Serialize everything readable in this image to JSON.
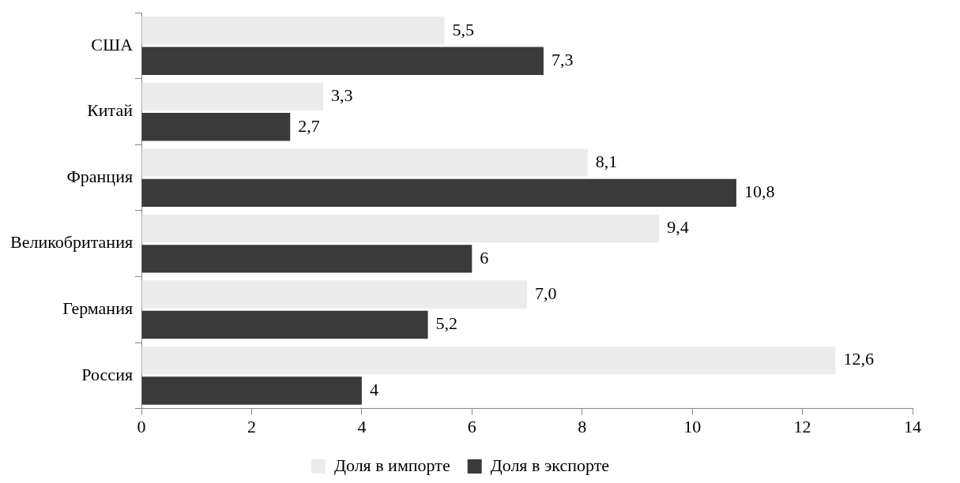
{
  "chart_data": {
    "type": "bar",
    "orientation": "horizontal",
    "categories": [
      "США",
      "Китай",
      "Франция",
      "Великобритания",
      "Германия",
      "Россия"
    ],
    "series": [
      {
        "name": "Доля в импорте",
        "color": "#ececec",
        "values": [
          5.5,
          3.3,
          8.1,
          9.4,
          7.0,
          12.6
        ],
        "value_labels": [
          "5,5",
          "3,3",
          "8,1",
          "9,4",
          "7,0",
          "12,6"
        ]
      },
      {
        "name": "Доля в экспорте",
        "color": "#3a3a3a",
        "values": [
          7.3,
          2.7,
          10.8,
          6,
          5.2,
          4
        ],
        "value_labels": [
          "7,3",
          "2,7",
          "10,8",
          "6",
          "5,2",
          "4"
        ]
      }
    ],
    "xlim": [
      0,
      14
    ],
    "xticks": [
      0,
      2,
      4,
      6,
      8,
      10,
      12,
      14
    ],
    "grid": false,
    "legend": "bottom"
  }
}
